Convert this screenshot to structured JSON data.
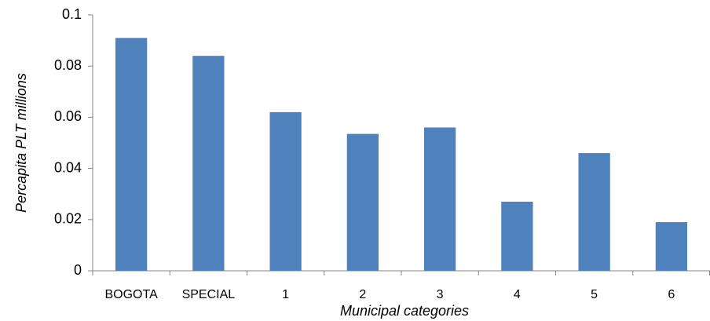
{
  "chart_data": {
    "type": "bar",
    "categories": [
      "BOGOTA",
      "SPECIAL",
      "1",
      "2",
      "3",
      "4",
      "5",
      "6"
    ],
    "values": [
      0.091,
      0.084,
      0.062,
      0.0535,
      0.056,
      0.027,
      0.046,
      0.019
    ],
    "color": "#4f81bd",
    "xlabel": "Municipal categories",
    "ylabel": "Percapita  PLT millions",
    "ylim": [
      0,
      0.1
    ],
    "yticks": [
      0,
      0.02,
      0.04,
      0.06,
      0.08,
      0.1
    ],
    "grid": false
  }
}
